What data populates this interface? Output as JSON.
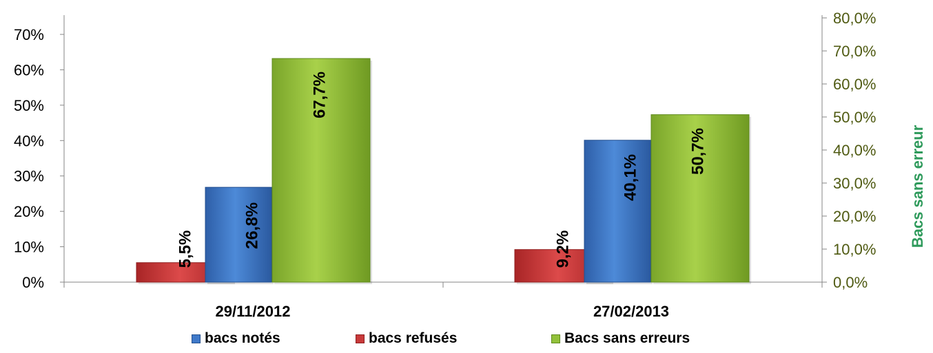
{
  "chart_data": {
    "type": "bar",
    "title": "",
    "categories": [
      "29/11/2012",
      "27/02/2013"
    ],
    "series": [
      {
        "name": "bacs notés",
        "values": [
          26.8,
          40.1
        ],
        "labels": [
          "26,8%",
          "40,1%"
        ],
        "axis": "left",
        "color": "#3f79c9"
      },
      {
        "name": "bacs refusés",
        "values": [
          5.5,
          9.2
        ],
        "labels": [
          "5,5%",
          "9,2%"
        ],
        "axis": "left",
        "color": "#c8393a"
      },
      {
        "name": "Bacs sans erreurs",
        "values": [
          67.7,
          50.7
        ],
        "labels": [
          "67,7%",
          "50,7%"
        ],
        "axis": "right",
        "color": "#92c13a"
      }
    ],
    "left_axis": {
      "ylim": [
        0,
        70
      ],
      "ticks": [
        "0%",
        "10%",
        "20%",
        "30%",
        "40%",
        "50%",
        "60%",
        "70%"
      ]
    },
    "right_axis": {
      "ylim": [
        0,
        80
      ],
      "ylabel": "Bacs sans erreur",
      "ylabel_color": "#2e9a5b",
      "tick_color": "#4f5a12",
      "ticks": [
        "0,0%",
        "10,0%",
        "20,0%",
        "30,0%",
        "40,0%",
        "50,0%",
        "60,0%",
        "70,0%",
        "80,0%"
      ]
    },
    "grid": false,
    "legend_position": "bottom"
  }
}
